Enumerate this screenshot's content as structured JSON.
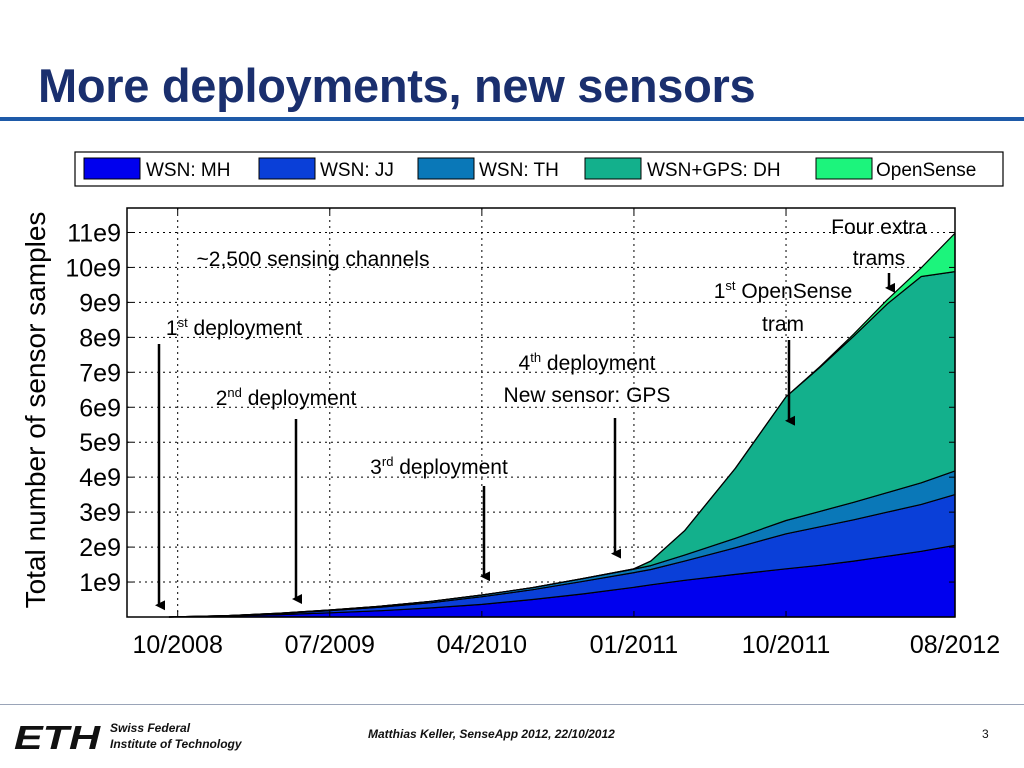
{
  "slide": {
    "title": "More deployments, new sensors"
  },
  "footer": {
    "institution_line1": "Swiss Federal",
    "institution_line2": "Institute of Technology",
    "center_text": "Matthias Keller, SenseApp 2012, 22/10/2012",
    "page_number": "3",
    "logo_text": "ETH"
  },
  "chart_data": {
    "type": "area",
    "stacked": true,
    "ylabel": "Total number of sensor samples",
    "xlabel": "",
    "x_tick_labels": [
      "10/2008",
      "07/2009",
      "04/2010",
      "01/2011",
      "10/2011",
      "08/2012"
    ],
    "x_tick_months": [
      0,
      9,
      18,
      27,
      36,
      46
    ],
    "y_tick_values": [
      1000000000.0,
      2000000000.0,
      3000000000.0,
      4000000000.0,
      5000000000.0,
      6000000000.0,
      7000000000.0,
      8000000000.0,
      9000000000.0,
      10000000000.0,
      11000000000.0
    ],
    "y_tick_labels": [
      "1e9",
      "2e9",
      "3e9",
      "4e9",
      "5e9",
      "6e9",
      "7e9",
      "8e9",
      "9e9",
      "10e9",
      "11e9"
    ],
    "xlim": [
      -3,
      46
    ],
    "ylim": [
      0,
      11700000000.0
    ],
    "grid": true,
    "legend_position": "top",
    "x_months": [
      -0.5,
      3,
      6,
      9,
      12,
      15,
      18,
      21,
      24,
      27,
      28,
      30,
      33,
      36,
      38,
      40,
      42,
      44,
      46
    ],
    "series": [
      {
        "name": "WSN: MH",
        "color": "#0000ee",
        "values": [
          0,
          30000000.0,
          70000000.0,
          120000000.0,
          180000000.0,
          260000000.0,
          360000000.0,
          500000000.0,
          660000000.0,
          850000000.0,
          920000000.0,
          1050000000.0,
          1220000000.0,
          1380000000.0,
          1480000000.0,
          1600000000.0,
          1740000000.0,
          1880000000.0,
          2050000000.0
        ]
      },
      {
        "name": "WSN: JJ",
        "color": "#0a3fd8",
        "values": [
          0,
          10000000.0,
          30000000.0,
          60000000.0,
          100000000.0,
          150000000.0,
          220000000.0,
          280000000.0,
          360000000.0,
          420000000.0,
          440000000.0,
          550000000.0,
          760000000.0,
          1000000000.0,
          1100000000.0,
          1180000000.0,
          1260000000.0,
          1340000000.0,
          1450000000.0
        ]
      },
      {
        "name": "WSN: TH",
        "color": "#0a78b8",
        "values": [
          0,
          0,
          10000000.0,
          20000000.0,
          30000000.0,
          40000000.0,
          50000000.0,
          60000000.0,
          80000000.0,
          100000000.0,
          110000000.0,
          170000000.0,
          270000000.0,
          380000000.0,
          440000000.0,
          500000000.0,
          560000000.0,
          620000000.0,
          680000000.0
        ]
      },
      {
        "name": "WSN+GPS: DH",
        "color": "#13b08c",
        "values": [
          0,
          0,
          0,
          0,
          0,
          0,
          0,
          0,
          0,
          10000000.0,
          130000000.0,
          700000000.0,
          2000000000.0,
          3540000000.0,
          4120000000.0,
          4750000000.0,
          5400000000.0,
          5900000000.0,
          5700000000.0
        ]
      },
      {
        "name": "OpenSense",
        "color": "#1cf47c",
        "values": [
          0,
          0,
          0,
          0,
          0,
          0,
          0,
          0,
          0,
          0,
          0,
          0,
          0,
          0,
          20000000.0,
          60000000.0,
          120000000.0,
          250000000.0,
          1100000000.0
        ]
      }
    ],
    "annotations": [
      {
        "id": "channels",
        "lines": [
          {
            "text": "~2,500 sensing channels"
          }
        ],
        "arrow": false
      },
      {
        "id": "dep1",
        "lines": [
          {
            "base": "1",
            "sup": "st",
            "text": " deployment"
          }
        ],
        "arrow_month": -0.2,
        "arrow_value": 20000000.0
      },
      {
        "id": "dep2",
        "lines": [
          {
            "base": "2",
            "sup": "nd",
            "text": " deployment"
          }
        ],
        "arrow_month": 7.9,
        "arrow_value": 200000000.0
      },
      {
        "id": "dep3",
        "lines": [
          {
            "base": "3",
            "sup": "rd",
            "text": " deployment"
          }
        ],
        "arrow_month": 19.4,
        "arrow_value": 850000000.0
      },
      {
        "id": "dep4",
        "lines": [
          {
            "base": "4",
            "sup": "th",
            "text": " deployment"
          },
          {
            "text": "New sensor: GPS"
          }
        ],
        "arrow_month": 27.1,
        "arrow_value": 1500000000.0
      },
      {
        "id": "opensense1",
        "lines": [
          {
            "base": "1",
            "sup": "st",
            "text": " OpenSense"
          },
          {
            "text": "tram"
          }
        ],
        "arrow_month": 35.6,
        "arrow_value": 5300000000.0
      },
      {
        "id": "trams",
        "lines": [
          {
            "text": "Four extra"
          },
          {
            "text": "trams"
          }
        ],
        "arrow_month": 43.2,
        "arrow_value": 9100000000.0
      }
    ]
  }
}
